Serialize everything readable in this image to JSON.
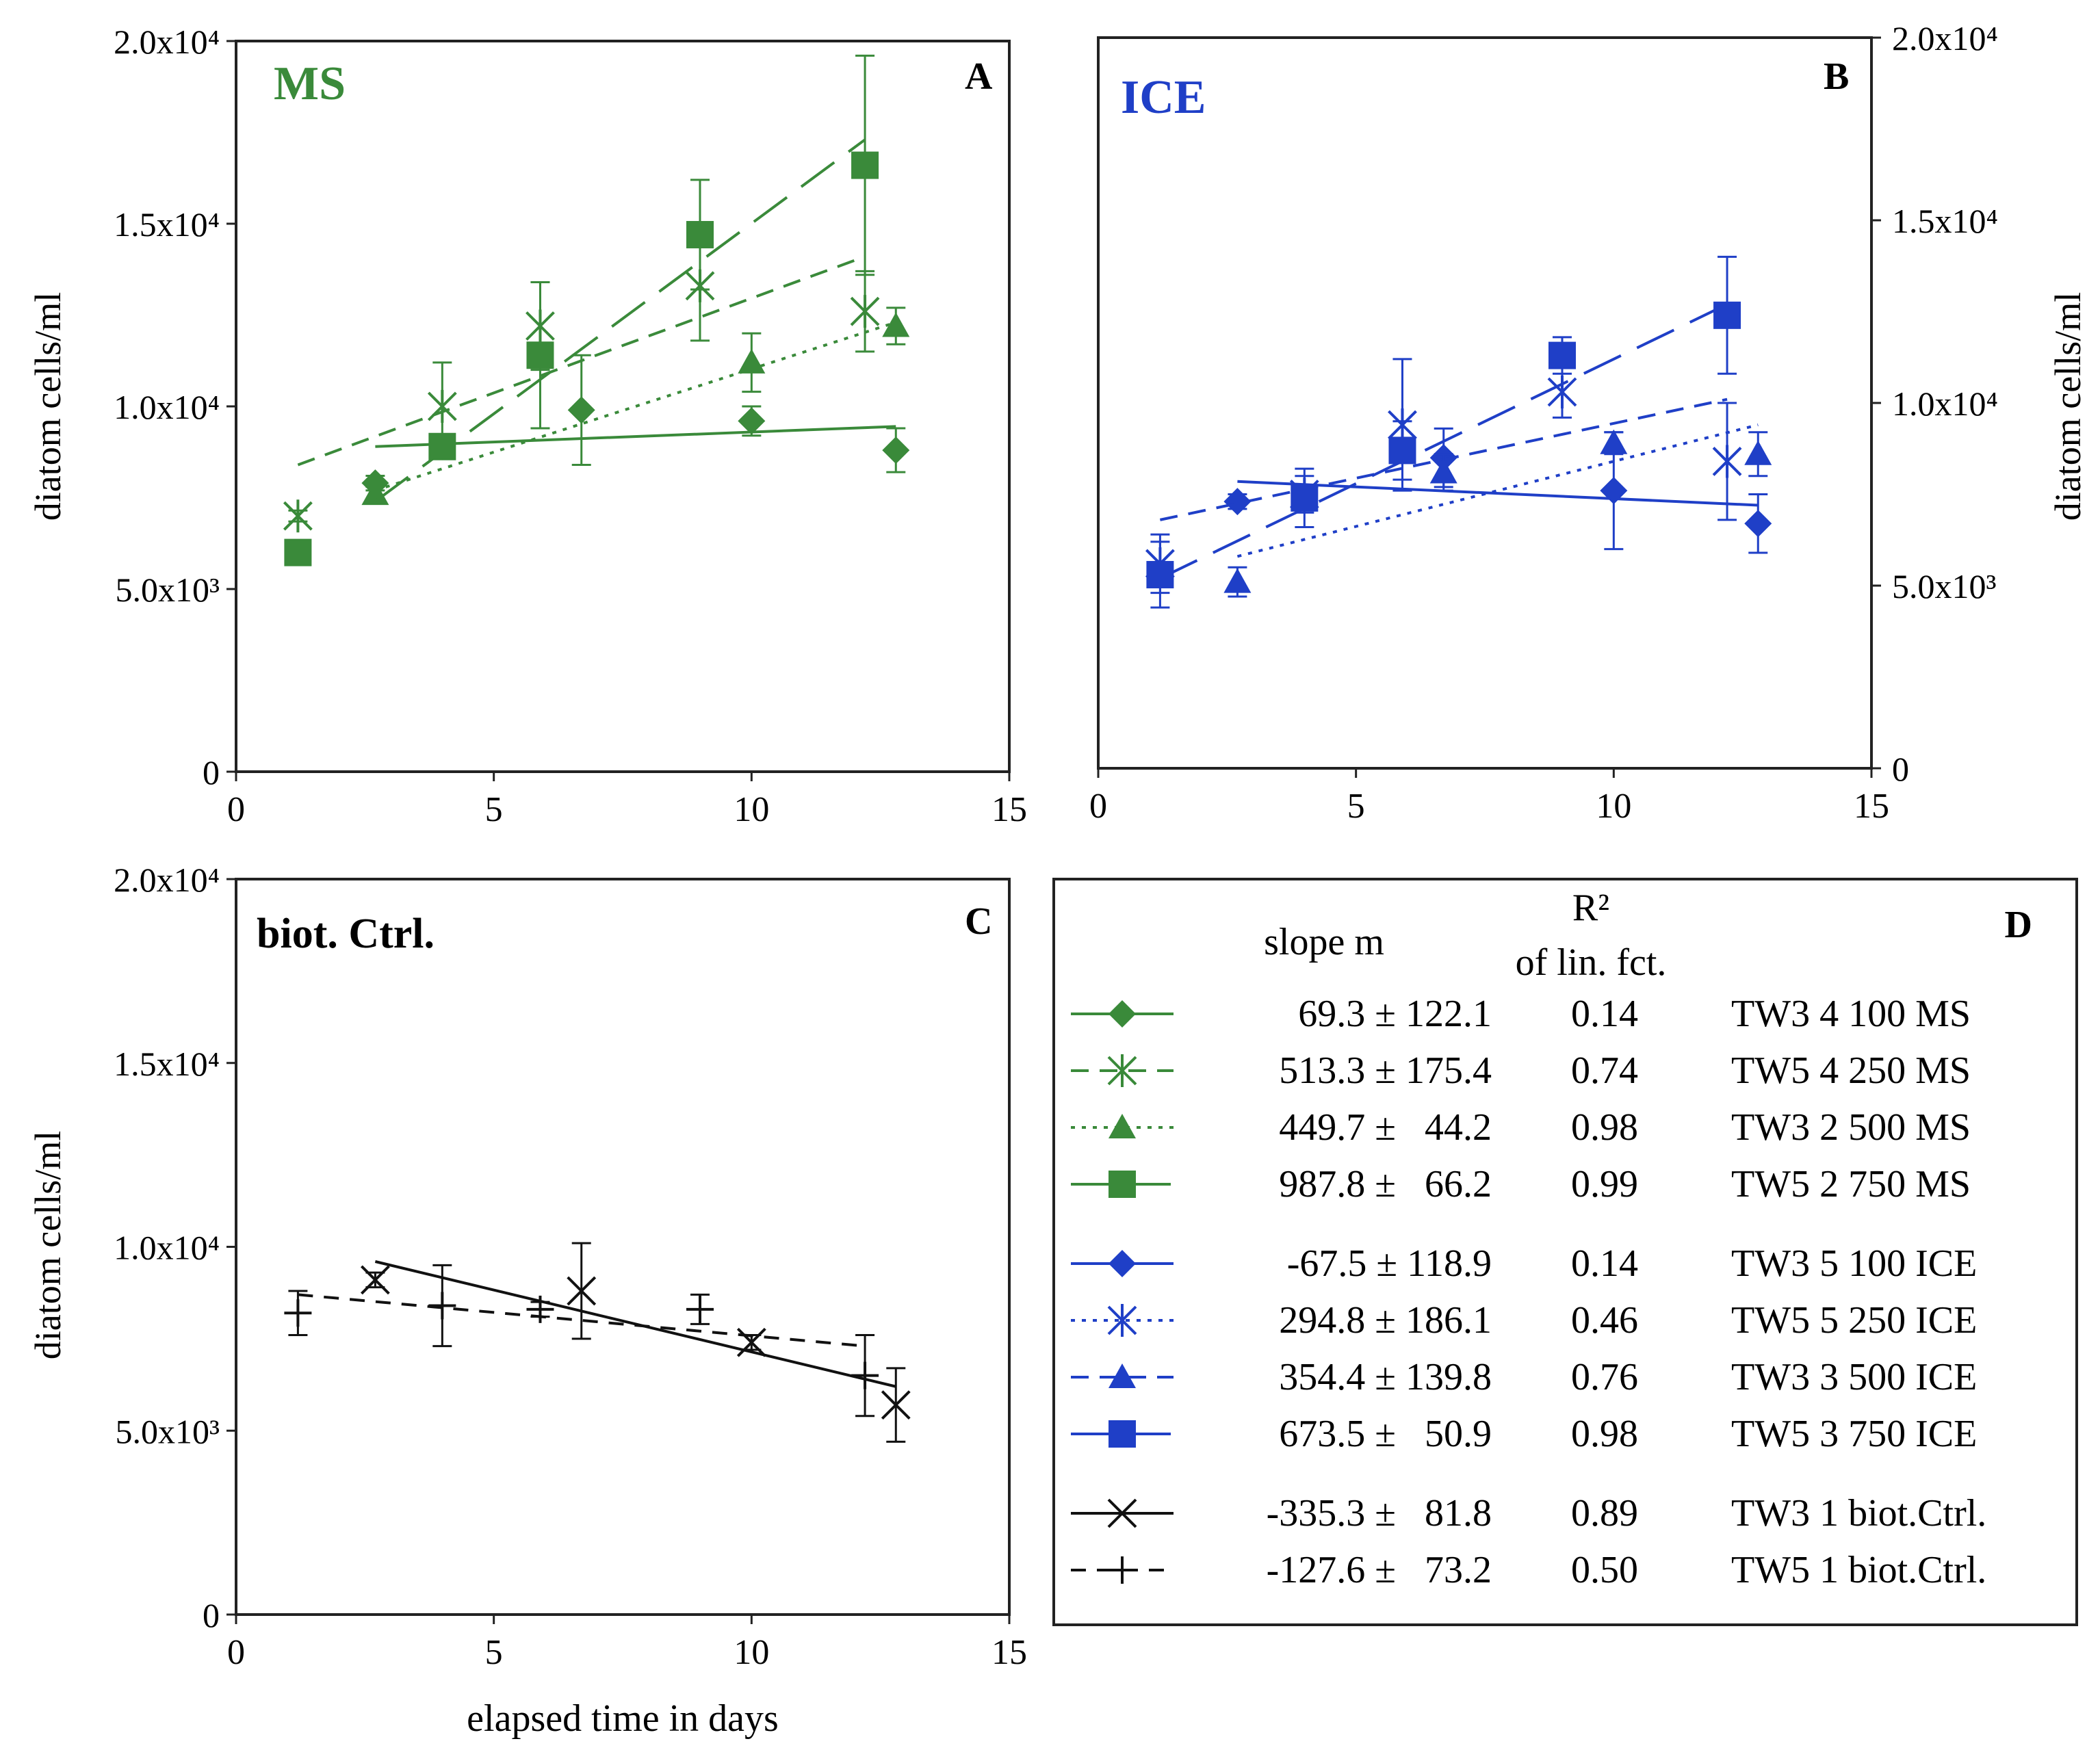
{
  "colors": {
    "ms": "#3a8a3a",
    "ice": "#1f3fc7",
    "ctrl": "#111111",
    "frame": "#222222"
  },
  "chart_data": [
    {
      "type": "scatter",
      "panel": "A",
      "panel_title": "MS",
      "xlabel": "",
      "ylabel": "diatom cells/ml",
      "xlim": [
        0,
        15
      ],
      "ylim": [
        0,
        20000
      ],
      "xticks": [
        "0",
        "5",
        "10",
        "15"
      ],
      "yticks": [
        "0",
        "5.0x10³",
        "1.0x10⁴",
        "1.5x10⁴",
        "2.0x10⁴"
      ],
      "series": [
        {
          "name": "TW3 4 100 MS",
          "marker": "diamond",
          "line": "solid",
          "x": [
            2.7,
            4.0,
            6.7,
            10.0,
            12.8
          ],
          "y": [
            7900,
            8900,
            9900,
            9600,
            8800
          ],
          "err": [
            200,
            300,
            1500,
            400,
            600
          ],
          "fit": {
            "x": [
              2.7,
              12.8
            ],
            "y": [
              8900,
              9450
            ]
          }
        },
        {
          "name": "TW5 4 250 MS",
          "marker": "asterisk",
          "line": "shortdash",
          "x": [
            1.2,
            4.0,
            5.9,
            9.0,
            12.2
          ],
          "y": [
            7000,
            10000,
            12200,
            13300,
            12600
          ],
          "err": [
            150,
            1200,
            1200,
            1500,
            1100
          ],
          "fit": {
            "x": [
              1.2,
              12.2
            ],
            "y": [
              8400,
              14100
            ]
          }
        },
        {
          "name": "TW3 2 500 MS",
          "marker": "triangle",
          "line": "dotted",
          "x": [
            2.7,
            10.0,
            12.8
          ],
          "y": [
            7600,
            11200,
            12200
          ],
          "err": [
            200,
            800,
            500
          ],
          "fit": {
            "x": [
              2.7,
              12.8
            ],
            "y": [
              7700,
              12300
            ]
          }
        },
        {
          "name": "TW5 2 750 MS",
          "marker": "square",
          "line": "longdash",
          "x": [
            1.2,
            4.0,
            5.9,
            9.0,
            12.2
          ],
          "y": [
            6000,
            8900,
            11400,
            14700,
            16600
          ],
          "err": [
            150,
            150,
            2000,
            1500,
            3000
          ],
          "fit": {
            "x": [
              2.7,
              12.2
            ],
            "y": [
              7400,
              17300
            ]
          }
        }
      ]
    },
    {
      "type": "scatter",
      "panel": "B",
      "panel_title": "ICE",
      "xlabel": "",
      "ylabel": "diatom cells/ml",
      "xlim": [
        0,
        15
      ],
      "ylim": [
        0,
        20000
      ],
      "xticks": [
        "0",
        "5",
        "10",
        "15"
      ],
      "yticks": [
        "0",
        "5.0x10³",
        "1.0x10⁴",
        "1.5x10⁴",
        "2.0x10⁴"
      ],
      "series": [
        {
          "name": "TW3 5 100 ICE",
          "marker": "diamond",
          "line": "solid",
          "x": [
            2.7,
            6.7,
            10.0,
            12.8
          ],
          "y": [
            7300,
            8500,
            7600,
            6700
          ],
          "err": [
            200,
            800,
            1600,
            800
          ],
          "fit": {
            "x": [
              2.7,
              12.8
            ],
            "y": [
              7850,
              7200
            ]
          }
        },
        {
          "name": "TW5 5 250 ICE",
          "marker": "asterisk",
          "line": "dotted",
          "x": [
            1.2,
            4.0,
            5.9,
            9.0,
            12.2
          ],
          "y": [
            5600,
            7500,
            9400,
            10300,
            8400
          ],
          "err": [
            800,
            500,
            1800,
            700,
            1600
          ],
          "fit": {
            "x": [
              2.7,
              12.8
            ],
            "y": [
              5800,
              9400
            ]
          }
        },
        {
          "name": "TW3 3 500 ICE",
          "marker": "triangle",
          "line": "shortdash",
          "x": [
            2.7,
            6.7,
            10.0,
            12.8
          ],
          "y": [
            5100,
            8100,
            8900,
            8600
          ],
          "err": [
            400,
            500,
            300,
            600
          ],
          "fit": {
            "x": [
              1.2,
              12.2
            ],
            "y": [
              6800,
              10100
            ]
          }
        },
        {
          "name": "TW5 3 750 ICE",
          "marker": "square",
          "line": "longdash",
          "x": [
            1.2,
            4.0,
            5.9,
            9.0,
            12.2
          ],
          "y": [
            5300,
            7400,
            8700,
            11300,
            12400
          ],
          "err": [
            900,
            800,
            800,
            500,
            1600
          ],
          "fit": {
            "x": [
              1.2,
              12.2
            ],
            "y": [
              5200,
              12700
            ]
          }
        }
      ]
    },
    {
      "type": "scatter",
      "panel": "C",
      "panel_title": "biot. Ctrl.",
      "xlabel": "elapsed time in days",
      "ylabel": "diatom cells/ml",
      "xlim": [
        0,
        15
      ],
      "ylim": [
        0,
        20000
      ],
      "xticks": [
        "0",
        "5",
        "10",
        "15"
      ],
      "yticks": [
        "0",
        "5.0x10³",
        "1.0x10⁴",
        "1.5x10⁴",
        "2.0x10⁴"
      ],
      "series": [
        {
          "name": "TW3 1 biot.Ctrl.",
          "marker": "x",
          "line": "solid",
          "x": [
            2.7,
            6.7,
            10.0,
            12.8
          ],
          "y": [
            9100,
            8800,
            7400,
            5700
          ],
          "err": [
            200,
            1300,
            200,
            1000
          ],
          "fit": {
            "x": [
              2.7,
              12.8
            ],
            "y": [
              9600,
              6200
            ]
          }
        },
        {
          "name": "TW5 1 biot.Ctrl.",
          "marker": "plus",
          "line": "dash",
          "x": [
            1.2,
            4.0,
            5.9,
            9.0,
            12.2
          ],
          "y": [
            8200,
            8400,
            8300,
            8300,
            6500
          ],
          "err": [
            600,
            1100,
            200,
            400,
            1100
          ],
          "fit": {
            "x": [
              1.2,
              12.2
            ],
            "y": [
              8700,
              7300
            ]
          }
        }
      ]
    }
  ],
  "panels": {
    "a": {
      "letter": "A"
    },
    "b": {
      "letter": "B"
    },
    "c": {
      "letter": "C"
    },
    "d": {
      "letter": "D",
      "header_slope": "slope m",
      "header_r2_line1": "R²",
      "header_r2_line2": "of lin. fct.",
      "rows": [
        {
          "slope": "69.3 ± 122.1",
          "r2": "0.14",
          "label": "TW3 4 100 MS"
        },
        {
          "slope": "513.3 ± 175.4",
          "r2": "0.74",
          "label": "TW5 4 250 MS"
        },
        {
          "slope": "449.7 ±   44.2",
          "r2": "0.98",
          "label": "TW3 2 500 MS"
        },
        {
          "slope": "987.8 ±   66.2",
          "r2": "0.99",
          "label": "TW5 2 750 MS"
        },
        {
          "slope": "-67.5 ± 118.9",
          "r2": "0.14",
          "label": "TW3 5 100 ICE"
        },
        {
          "slope": "294.8 ± 186.1",
          "r2": "0.46",
          "label": "TW5 5 250 ICE"
        },
        {
          "slope": "354.4 ± 139.8",
          "r2": "0.76",
          "label": "TW3 3 500 ICE"
        },
        {
          "slope": "673.5 ±   50.9",
          "r2": "0.98",
          "label": "TW5 3 750 ICE"
        },
        {
          "slope": "-335.3 ±   81.8",
          "r2": "0.89",
          "label": "TW3 1 biot.Ctrl."
        },
        {
          "slope": "-127.6 ±   73.2",
          "r2": "0.50",
          "label": "TW5 1 biot.Ctrl."
        }
      ]
    }
  }
}
